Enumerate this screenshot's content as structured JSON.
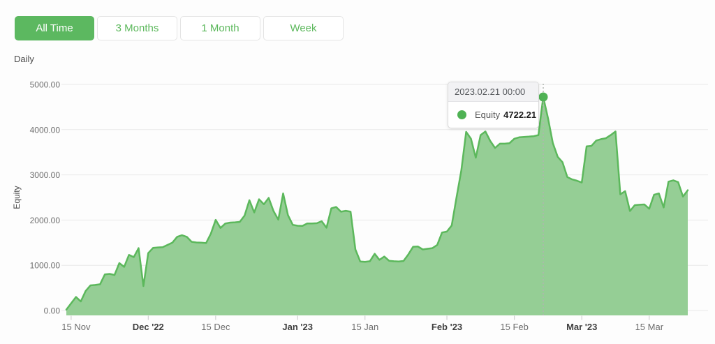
{
  "toolbar": {
    "buttons": [
      {
        "label": "All Time",
        "active": true
      },
      {
        "label": "3 Months",
        "active": false
      },
      {
        "label": "1 Month",
        "active": false
      },
      {
        "label": "Week",
        "active": false
      }
    ]
  },
  "frequency_label": "Daily",
  "colors": {
    "accent_green": "#5cb860",
    "line": "#5cb85c",
    "area_fill": "#95ce95",
    "gridline": "#e9e9e9",
    "tick": "#c9c9c9",
    "axis_text": "#6e6e6e",
    "axis_text_bold": "#3f3f3f",
    "marker": "#4fb254",
    "crosshair": "#b0b5b0"
  },
  "tooltip": {
    "header": "2023.02.21 00:00",
    "series_label": "Equity",
    "value": "4722.21",
    "point_index": 99
  },
  "chart_data": {
    "type": "area",
    "title": "",
    "xlabel": "",
    "ylabel": "Equity",
    "ylim": [
      0,
      5000
    ],
    "grid": true,
    "legend": "none",
    "frequency": "daily",
    "start_date": "2022-11-14",
    "y_ticks": [
      {
        "label": "5000.00",
        "value": 5000
      },
      {
        "label": "4000.00",
        "value": 4000
      },
      {
        "label": "3000.00",
        "value": 3000
      },
      {
        "label": "2000.00",
        "value": 2000
      },
      {
        "label": "1000.00",
        "value": 1000
      },
      {
        "label": "0.00",
        "value": 0
      }
    ],
    "x_ticks": [
      {
        "label": "15 Nov",
        "day_index": 1,
        "bold": false
      },
      {
        "label": "Dec '22",
        "day_index": 17,
        "bold": true
      },
      {
        "label": "15 Dec",
        "day_index": 31,
        "bold": false
      },
      {
        "label": "Jan '23",
        "day_index": 48,
        "bold": true
      },
      {
        "label": "15 Jan",
        "day_index": 62,
        "bold": false
      },
      {
        "label": "Feb '23",
        "day_index": 79,
        "bold": true
      },
      {
        "label": "15 Feb",
        "day_index": 93,
        "bold": false
      },
      {
        "label": "Mar '23",
        "day_index": 107,
        "bold": true
      },
      {
        "label": "15 Mar",
        "day_index": 121,
        "bold": false
      }
    ],
    "series": [
      {
        "name": "Equity",
        "values": [
          20,
          160,
          300,
          200,
          430,
          555,
          565,
          580,
          800,
          810,
          785,
          1050,
          965,
          1230,
          1180,
          1380,
          540,
          1270,
          1385,
          1395,
          1400,
          1450,
          1500,
          1630,
          1665,
          1630,
          1520,
          1505,
          1500,
          1490,
          1700,
          2005,
          1825,
          1925,
          1945,
          1950,
          1960,
          2100,
          2440,
          2170,
          2460,
          2350,
          2490,
          2200,
          2010,
          2590,
          2110,
          1895,
          1875,
          1870,
          1925,
          1925,
          1930,
          1975,
          1830,
          2260,
          2290,
          2185,
          2205,
          2185,
          1350,
          1085,
          1075,
          1090,
          1255,
          1120,
          1195,
          1100,
          1090,
          1085,
          1095,
          1240,
          1410,
          1415,
          1350,
          1365,
          1380,
          1450,
          1725,
          1745,
          1880,
          2500,
          3100,
          3950,
          3800,
          3380,
          3880,
          3960,
          3750,
          3595,
          3690,
          3690,
          3700,
          3800,
          3830,
          3840,
          3845,
          3855,
          3880,
          4722.21,
          4250,
          3700,
          3400,
          3280,
          2950,
          2900,
          2870,
          2830,
          3630,
          3640,
          3760,
          3790,
          3810,
          3880,
          3960,
          2570,
          2640,
          2200,
          2330,
          2340,
          2345,
          2250,
          2560,
          2590,
          2280,
          2850,
          2880,
          2840,
          2520,
          2660
        ]
      }
    ]
  }
}
